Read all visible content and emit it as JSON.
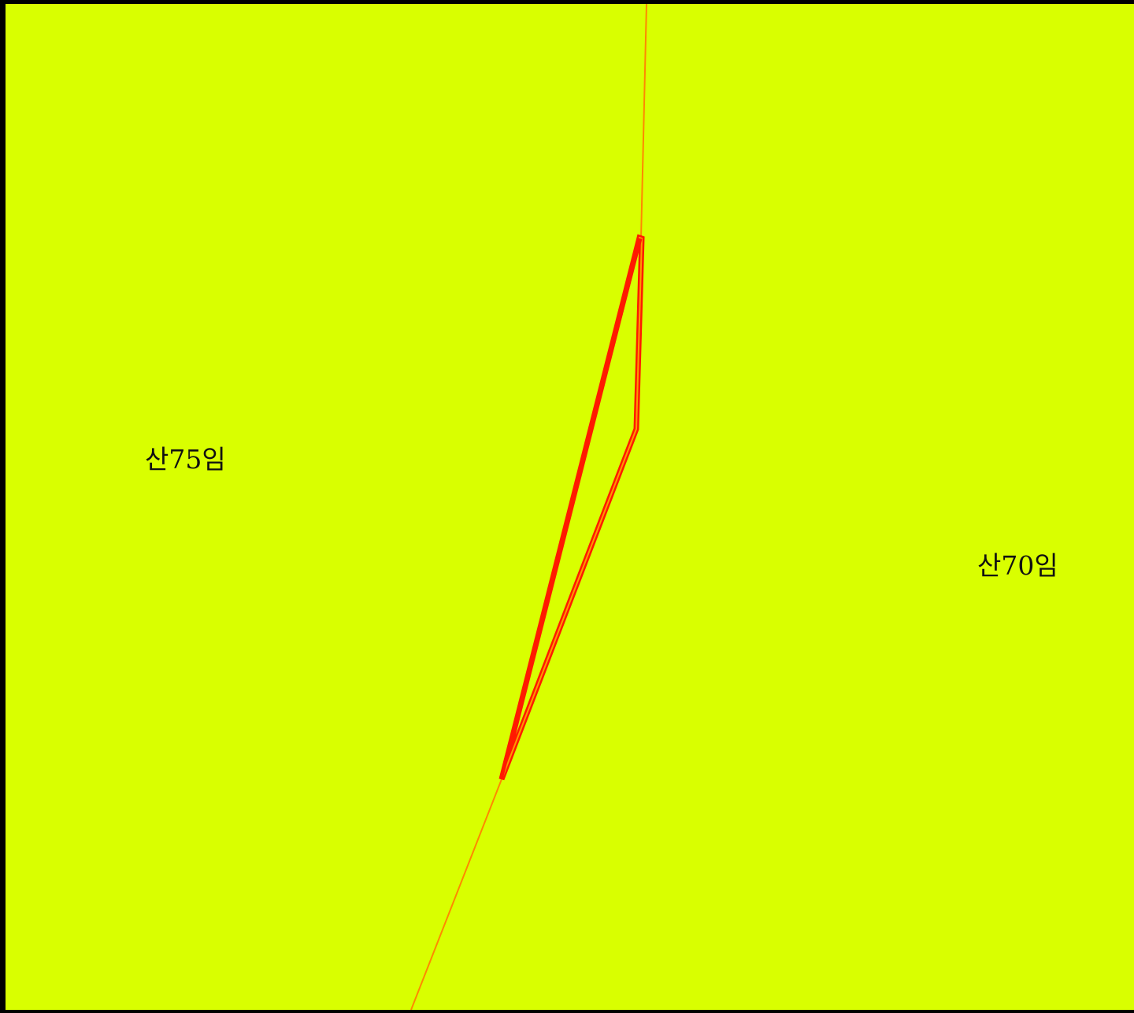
{
  "map": {
    "background_color": "#d9ff00",
    "boundary_color": "#ff7700",
    "highlight_color": "#ff1a00",
    "parcels": [
      {
        "id": "parcel-75",
        "label": "산75임"
      },
      {
        "id": "parcel-70",
        "label": "산70임"
      }
    ]
  }
}
